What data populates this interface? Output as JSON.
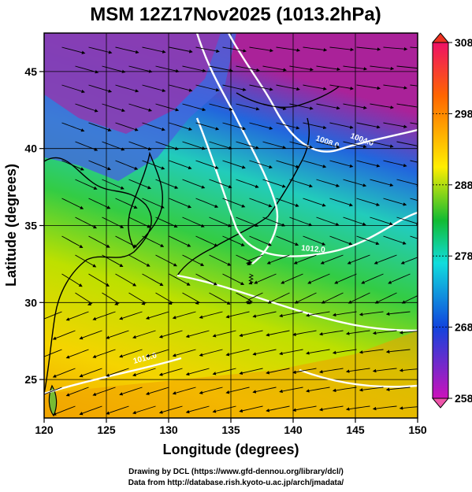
{
  "title": "MSM 12Z17Nov2025 (1013.2hPa)",
  "map": {
    "lon_range": [
      120,
      150
    ],
    "lat_range": [
      22.5,
      47.5
    ],
    "xlabel": "Longitude (degrees)",
    "ylabel": "Latitude  (degrees)",
    "x_ticks": [
      "120",
      "125",
      "130",
      "135",
      "140",
      "145",
      "150"
    ],
    "y_ticks": [
      "25",
      "30",
      "35",
      "40",
      "45"
    ],
    "grid": true
  },
  "colorbar": {
    "ticks": [
      "308",
      "298",
      "288",
      "278",
      "268",
      "258"
    ],
    "range": [
      258,
      308
    ],
    "colors": [
      "#ee1166",
      "#ff6600",
      "#ffee00",
      "#11bb33",
      "#11dddd",
      "#1144dd",
      "#cc11bb"
    ]
  },
  "contours": {
    "color": "#ffffff",
    "labels": [
      "1004.0",
      "1008.0",
      "1012.0",
      "1016.0"
    ]
  },
  "streamlines": {
    "color": "#000000"
  },
  "credits": {
    "line1": "Drawing by DCL (https://www.gfd-dennou.org/library/dcl/)",
    "line2": "Data from http://database.rish.kyoto-u.ac.jp/arch/jmadata/"
  }
}
